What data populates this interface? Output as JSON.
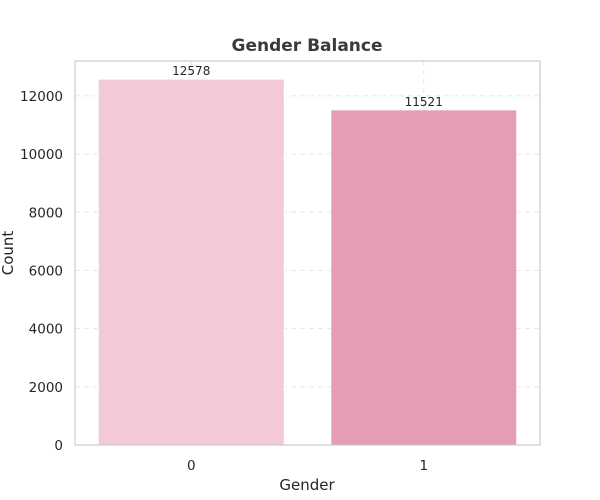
{
  "chart_data": {
    "type": "bar",
    "title": "Gender Balance",
    "xlabel": "Gender",
    "ylabel": "Count",
    "categories": [
      "0",
      "1"
    ],
    "values": [
      12578,
      11521
    ],
    "data_labels": [
      "12578",
      "11521"
    ],
    "bar_colors": [
      "#f3c9d6",
      "#e69cb5"
    ],
    "ylim": [
      0,
      13200
    ],
    "yticks": [
      0,
      2000,
      4000,
      6000,
      8000,
      10000,
      12000
    ],
    "grid": true,
    "legend": "none"
  }
}
